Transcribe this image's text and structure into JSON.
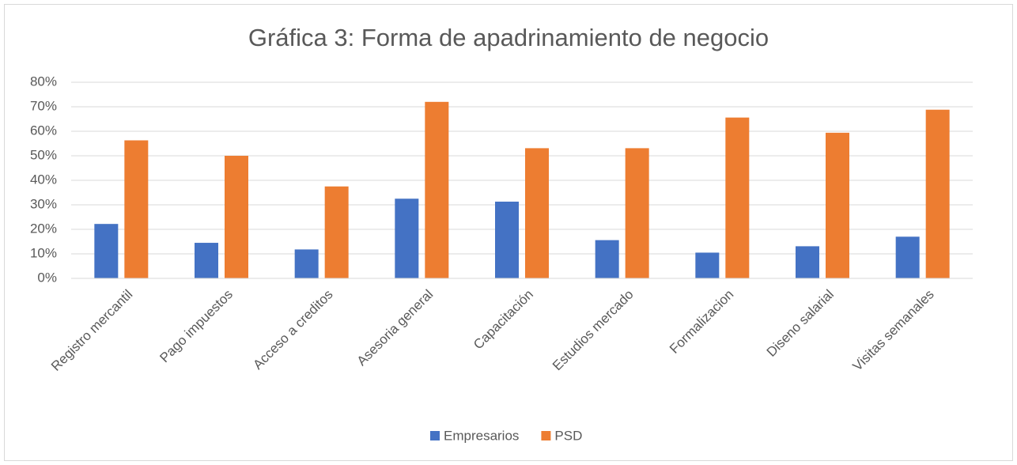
{
  "chart_data": {
    "type": "bar",
    "title": "Gráfica 3: Forma de apadrinamiento de negocio",
    "categories": [
      "Registro mercantil",
      "Pago impuestos",
      "Acceso a creditos",
      "Asesoria general",
      "Capacitación",
      "Estudios mercado",
      "Formalizacion",
      "Diseno salarial",
      "Visitas semanales"
    ],
    "series": [
      {
        "name": "Empresarios",
        "color": "#4472c4",
        "values": [
          22.2,
          14.5,
          11.8,
          32.5,
          31.3,
          15.6,
          10.5,
          13.1,
          17
        ]
      },
      {
        "name": "PSD",
        "color": "#ed7d31",
        "values": [
          56.3,
          50,
          37.5,
          72,
          53.1,
          53.1,
          65.6,
          59.4,
          68.8
        ]
      }
    ],
    "ylim": [
      0,
      80
    ],
    "yticks": [
      {
        "value": 0,
        "label": "0%"
      },
      {
        "value": 10,
        "label": "10%"
      },
      {
        "value": 20,
        "label": "20%"
      },
      {
        "value": 30,
        "label": "30%"
      },
      {
        "value": 40,
        "label": "40%"
      },
      {
        "value": 50,
        "label": "50%"
      },
      {
        "value": 60,
        "label": "60%"
      },
      {
        "value": 70,
        "label": "70%"
      },
      {
        "value": 80,
        "label": "80%"
      }
    ],
    "grid": true,
    "legend": "bottom"
  }
}
